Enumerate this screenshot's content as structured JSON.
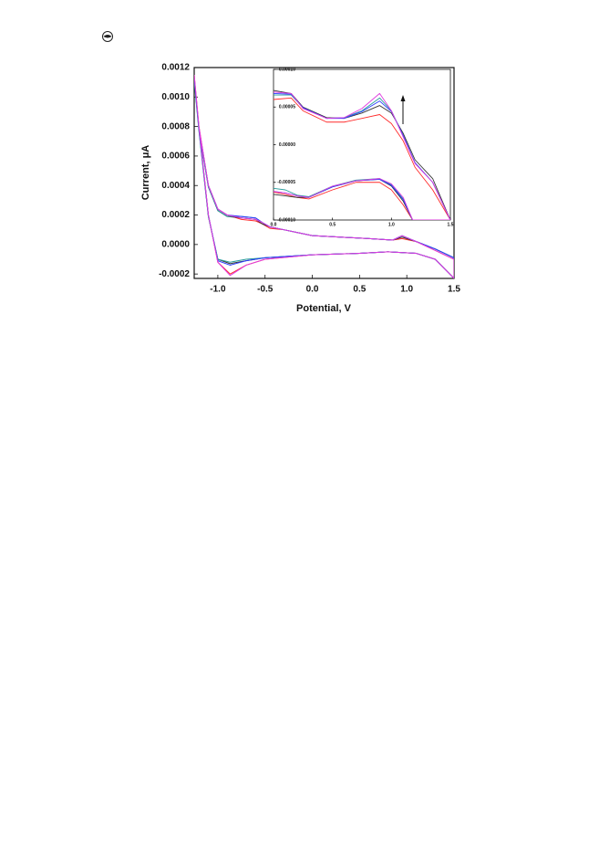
{
  "chart_data": [
    {
      "type": "line",
      "xlabel": "Potential, V",
      "ylabel": "Current, μA",
      "x": [
        -1.25,
        -1.2,
        -1.1,
        -1.0,
        -0.9,
        -0.75,
        -0.6,
        -0.53,
        -0.45,
        -0.3,
        0,
        0.3,
        0.6,
        0.85,
        0.95,
        1.1,
        1.3,
        1.5,
        1.5,
        1.3,
        1.1,
        0.8,
        0.5,
        0,
        -0.5,
        -0.7,
        -0.87,
        -1.0,
        -1.1,
        -1.2,
        -1.25
      ],
      "series": [
        {
          "color": "#ff2a2a",
          "values": [
            0.00115,
            0.0008,
            0.0004,
            0.00024,
            0.0002,
            0.00017,
            0.00016,
            0.00014,
            0.00011,
            0.0001,
            6e-05,
            5e-05,
            4e-05,
            3e-05,
            4e-05,
            2e-05,
            -4e-05,
            -0.0001,
            -0.00023,
            -0.0001,
            -6e-05,
            -5e-05,
            -6e-05,
            -7e-05,
            -0.0001,
            -0.00014,
            -0.0002,
            -0.00012,
            0.0002,
            0.0008,
            0.00115
          ]
        },
        {
          "color": "#333333",
          "values": [
            0.00112,
            0.00078,
            0.00039,
            0.00023,
            0.00019,
            0.00018,
            0.00017,
            0.00014,
            0.00012,
            0.0001,
            6e-05,
            5e-05,
            4e-05,
            3e-05,
            5e-05,
            2e-05,
            -3e-05,
            -9e-05,
            -0.00023,
            -0.0001,
            -6e-05,
            -5e-05,
            -6e-05,
            -7e-05,
            -9e-05,
            -0.00011,
            -0.00013,
            -0.0001,
            0.00019,
            0.00078,
            0.00112
          ]
        },
        {
          "color": "#2a9d9d",
          "values": [
            0.00111,
            0.00077,
            0.00039,
            0.00023,
            0.00019,
            0.00019,
            0.00018,
            0.00015,
            0.00012,
            0.0001,
            6e-05,
            5e-05,
            4e-05,
            3e-05,
            6e-05,
            2e-05,
            -3e-05,
            -9e-05,
            -0.00023,
            -0.0001,
            -6e-05,
            -5e-05,
            -6e-05,
            -7e-05,
            -9e-05,
            -0.0001,
            -0.00012,
            -0.0001,
            0.00019,
            0.00077,
            0.00111
          ]
        },
        {
          "color": "#2a3cff",
          "values": [
            0.00113,
            0.00079,
            0.0004,
            0.00024,
            0.0002,
            0.00019,
            0.00018,
            0.00015,
            0.00012,
            0.0001,
            6e-05,
            5e-05,
            4e-05,
            3e-05,
            6e-05,
            2e-05,
            -3e-05,
            -9e-05,
            -0.00023,
            -0.0001,
            -6e-05,
            -5e-05,
            -6e-05,
            -7e-05,
            -9e-05,
            -0.00011,
            -0.00014,
            -0.00011,
            0.0002,
            0.00079,
            0.00113
          ]
        },
        {
          "color": "#e03ce0",
          "values": [
            0.00115,
            0.0008,
            0.0004,
            0.00024,
            0.0002,
            0.00018,
            0.00017,
            0.00015,
            0.00012,
            0.0001,
            6e-05,
            5e-05,
            4e-05,
            3e-05,
            6e-05,
            2e-05,
            -4e-05,
            -0.0001,
            -0.00023,
            -0.0001,
            -6e-05,
            -5e-05,
            -6e-05,
            -7e-05,
            -0.0001,
            -0.00014,
            -0.00021,
            -0.00012,
            0.0002,
            0.0008,
            0.00115
          ]
        }
      ],
      "xlim": [
        -1.25,
        1.5
      ],
      "ylim": [
        -0.00023,
        0.0012
      ],
      "xticks": [
        {
          "value": -1.0,
          "label": "-1.0"
        },
        -0.5,
        {
          "value": 0.0,
          "label": "0.0"
        },
        0.5,
        {
          "value": 1.0,
          "label": "1.0"
        },
        1.5
      ],
      "yticks": [
        0.0012,
        {
          "value": 0.001,
          "label": "0.0010"
        },
        0.0008,
        0.0006,
        0.0004,
        0.0002,
        {
          "value": 0,
          "label": "0.0000"
        },
        -0.0002
      ]
    },
    {
      "type": "line",
      "x": [
        0,
        0.15,
        0.25,
        0.45,
        0.6,
        0.75,
        0.9,
        1.0,
        1.1,
        1.2,
        1.35,
        1.5,
        1.18,
        1.1,
        1.0,
        0.9,
        0.7,
        0.5,
        0.3,
        0.2,
        0.1,
        0.0
      ],
      "series": [
        {
          "color": "#ff2a2a",
          "values": [
            6e-05,
            6.2e-05,
            4.5e-05,
            3e-05,
            3e-05,
            3.5e-05,
            4e-05,
            2.8e-05,
            5e-06,
            -3e-05,
            -6e-05,
            -0.0001,
            -0.0001,
            -8e-05,
            -6e-05,
            -5e-05,
            -5e-05,
            -6e-05,
            -7.2e-05,
            -7e-05,
            -6.6e-05,
            -6.3e-05
          ]
        },
        {
          "color": "#333333",
          "values": [
            7.2e-05,
            6.8e-05,
            5e-05,
            3.6e-05,
            3.5e-05,
            4.2e-05,
            5.2e-05,
            4.2e-05,
            1.5e-05,
            -2e-05,
            -4.5e-05,
            -0.0001,
            -0.0001,
            -7.5e-05,
            -5.5e-05,
            -4.6e-05,
            -4.8e-05,
            -5.6e-05,
            -7e-05,
            -7e-05,
            -6.8e-05,
            -6.6e-05
          ]
        },
        {
          "color": "#2a9d9d",
          "values": [
            6.6e-05,
            6.6e-05,
            4.9e-05,
            3.5e-05,
            3.6e-05,
            4.5e-05,
            6.2e-05,
            4.5e-05,
            1.2e-05,
            -2.4e-05,
            -5e-05,
            -0.0001,
            -0.0001,
            -7.2e-05,
            -5.3e-05,
            -4.5e-05,
            -4.7e-05,
            -5.5e-05,
            -6.9e-05,
            -6.7e-05,
            -6e-05,
            -5.8e-05
          ]
        },
        {
          "color": "#2a3cff",
          "values": [
            6.8e-05,
            6.7e-05,
            4.9e-05,
            3.5e-05,
            3.5e-05,
            4.4e-05,
            5.8e-05,
            4.4e-05,
            1.2e-05,
            -2.4e-05,
            -5e-05,
            -0.0001,
            -0.0001,
            -7.3e-05,
            -5.4e-05,
            -4.6e-05,
            -4.8e-05,
            -5.6e-05,
            -7e-05,
            -6.8e-05,
            -6.4e-05,
            -6.2e-05
          ]
        },
        {
          "color": "#e03ce0",
          "values": [
            7e-05,
            6.8e-05,
            4.8e-05,
            3.5e-05,
            3.6e-05,
            4.8e-05,
            6.8e-05,
            4.5e-05,
            1e-05,
            -2.5e-05,
            -5e-05,
            -0.0001,
            -0.0001,
            -7e-05,
            -5.2e-05,
            -4.5e-05,
            -4.8e-05,
            -5.5e-05,
            -7e-05,
            -6.8e-05,
            -6.4e-05,
            -6.2e-05
          ]
        }
      ],
      "xlim": [
        0,
        1.5
      ],
      "ylim": [
        -0.0001,
        0.0001
      ],
      "xticks": [
        {
          "value": 0,
          "label": "0.0"
        },
        0.5,
        {
          "value": 1,
          "label": "1.0"
        },
        1.5
      ],
      "yticks": [
        {
          "value": 0.0001,
          "label": "0.00010"
        },
        5e-05,
        {
          "value": 0,
          "label": "0.00000"
        },
        -5e-05,
        {
          "value": -0.0001,
          "label": "-0.00010"
        }
      ]
    }
  ]
}
